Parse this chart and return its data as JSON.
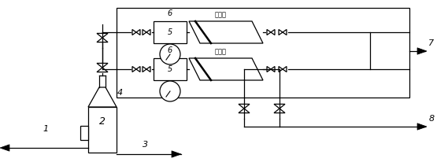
{
  "bg_color": "#ffffff",
  "line_color": "#000000",
  "lw": 0.9,
  "fig_w": 5.69,
  "fig_h": 2.06,
  "dpi": 100
}
